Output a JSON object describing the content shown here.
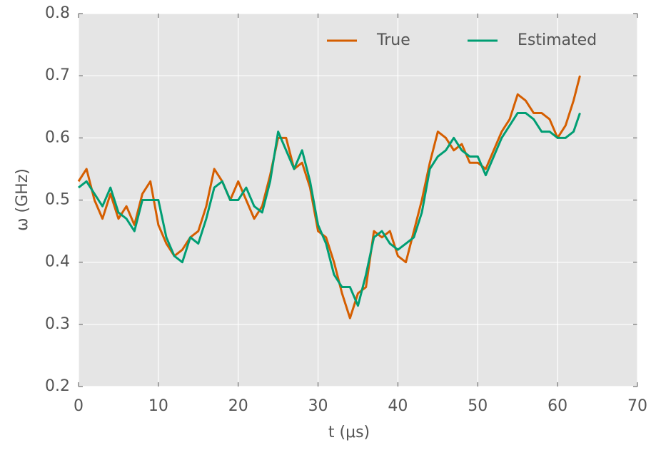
{
  "chart_data": {
    "type": "line",
    "xlabel": "t (μs)",
    "ylabel": "ω (GHz)",
    "x": [
      0,
      1,
      2,
      3,
      4,
      5,
      6,
      7,
      8,
      9,
      10,
      11,
      12,
      13,
      14,
      15,
      16,
      17,
      18,
      19,
      20,
      21,
      22,
      23,
      24,
      25,
      26,
      27,
      28,
      29,
      30,
      31,
      32,
      33,
      34,
      35,
      36,
      37,
      38,
      39,
      40,
      41,
      42,
      43,
      44,
      45,
      46,
      47,
      48,
      49,
      50,
      51,
      52,
      53,
      54,
      55,
      56,
      57,
      58,
      59,
      60,
      61,
      62,
      62.8
    ],
    "series": [
      {
        "name": "True",
        "color": "#d55e00",
        "values": [
          0.53,
          0.55,
          0.5,
          0.47,
          0.51,
          0.47,
          0.49,
          0.46,
          0.51,
          0.53,
          0.46,
          0.43,
          0.41,
          0.42,
          0.44,
          0.45,
          0.49,
          0.55,
          0.53,
          0.5,
          0.53,
          0.5,
          0.47,
          0.49,
          0.54,
          0.6,
          0.6,
          0.55,
          0.56,
          0.52,
          0.45,
          0.44,
          0.4,
          0.35,
          0.31,
          0.35,
          0.36,
          0.45,
          0.44,
          0.45,
          0.41,
          0.4,
          0.45,
          0.5,
          0.56,
          0.61,
          0.6,
          0.58,
          0.59,
          0.56,
          0.56,
          0.55,
          0.58,
          0.61,
          0.63,
          0.67,
          0.66,
          0.64,
          0.64,
          0.63,
          0.6,
          0.62,
          0.66,
          0.7
        ]
      },
      {
        "name": "Estimated",
        "color": "#009e73",
        "values": [
          0.52,
          0.53,
          0.51,
          0.49,
          0.52,
          0.48,
          0.47,
          0.45,
          0.5,
          0.5,
          0.5,
          0.44,
          0.41,
          0.4,
          0.44,
          0.43,
          0.47,
          0.52,
          0.53,
          0.5,
          0.5,
          0.52,
          0.49,
          0.48,
          0.53,
          0.61,
          0.58,
          0.55,
          0.58,
          0.53,
          0.46,
          0.43,
          0.38,
          0.36,
          0.36,
          0.33,
          0.38,
          0.44,
          0.45,
          0.43,
          0.42,
          0.43,
          0.44,
          0.48,
          0.55,
          0.57,
          0.58,
          0.6,
          0.58,
          0.57,
          0.57,
          0.54,
          0.57,
          0.6,
          0.62,
          0.64,
          0.64,
          0.63,
          0.61,
          0.61,
          0.6,
          0.6,
          0.61,
          0.64
        ]
      }
    ],
    "xlim": [
      0,
      70
    ],
    "xticks": [
      0,
      10,
      20,
      30,
      40,
      50,
      60,
      70
    ],
    "ylim": [
      0.2,
      0.8
    ],
    "yticks": [
      0.2,
      0.3,
      0.4,
      0.5,
      0.6,
      0.7,
      0.8
    ],
    "grid": true,
    "legend": "upper right"
  }
}
